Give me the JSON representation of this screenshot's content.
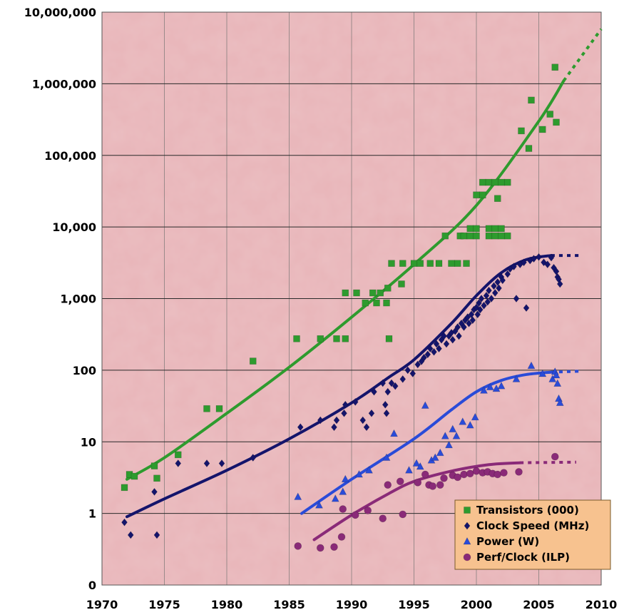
{
  "chart_data": {
    "type": "scatter",
    "xlim": [
      1970,
      2010
    ],
    "ylim": [
      0.1,
      10000000
    ],
    "yscale": "log",
    "x_ticks": [
      1970,
      1975,
      1980,
      1985,
      1990,
      1995,
      2000,
      2005,
      2010
    ],
    "y_ticks": [
      {
        "value": 0.1,
        "label": "0"
      },
      {
        "value": 1,
        "label": "1"
      },
      {
        "value": 10,
        "label": "10"
      },
      {
        "value": 100,
        "label": "100"
      },
      {
        "value": 1000,
        "label": "1,000"
      },
      {
        "value": 10000,
        "label": "10,000"
      },
      {
        "value": 100000,
        "label": "100,000"
      },
      {
        "value": 1000000,
        "label": "1,000,000"
      },
      {
        "value": 10000000,
        "label": "10,000,000"
      }
    ],
    "grid": true,
    "legend_position": "bottom-right",
    "background_color": "#e8b4b8",
    "series": [
      {
        "name": "Transistors (000)",
        "marker": "square",
        "color": "#2e9b2e",
        "points": [
          [
            1971.8,
            2.3
          ],
          [
            1972.2,
            3.5
          ],
          [
            1972.6,
            3.3
          ],
          [
            1974.2,
            4.6
          ],
          [
            1974.4,
            3.1
          ],
          [
            1976.1,
            6.6
          ],
          [
            1978.4,
            29
          ],
          [
            1979.4,
            29
          ],
          [
            1982.1,
            134
          ],
          [
            1985.6,
            275
          ],
          [
            1987.5,
            275
          ],
          [
            1988.8,
            275
          ],
          [
            1989.5,
            275
          ],
          [
            1989.5,
            1200
          ],
          [
            1990.4,
            1200
          ],
          [
            1991.1,
            870
          ],
          [
            1991.7,
            1200
          ],
          [
            1992.0,
            870
          ],
          [
            1992.3,
            1200
          ],
          [
            1992.8,
            870
          ],
          [
            1992.9,
            1400
          ],
          [
            1993.0,
            275
          ],
          [
            1993.2,
            3100
          ],
          [
            1994.0,
            1600
          ],
          [
            1994.1,
            3100
          ],
          [
            1995.0,
            3100
          ],
          [
            1995.5,
            3100
          ],
          [
            1996.3,
            3100
          ],
          [
            1997.0,
            3100
          ],
          [
            1997.5,
            7500
          ],
          [
            1998.0,
            3100
          ],
          [
            1998.5,
            3100
          ],
          [
            1998.7,
            7500
          ],
          [
            1999.0,
            7500
          ],
          [
            1999.2,
            3100
          ],
          [
            1999.5,
            7500
          ],
          [
            1999.5,
            9500
          ],
          [
            2000.0,
            7500
          ],
          [
            2000.0,
            9500
          ],
          [
            2000.0,
            28000
          ],
          [
            2000.5,
            28000
          ],
          [
            2000.5,
            42000
          ],
          [
            2001.0,
            7500
          ],
          [
            2001.0,
            9500
          ],
          [
            2001.0,
            42000
          ],
          [
            2001.5,
            7500
          ],
          [
            2001.5,
            9500
          ],
          [
            2001.5,
            42000
          ],
          [
            2001.7,
            25000
          ],
          [
            2002.0,
            7500
          ],
          [
            2002.0,
            9500
          ],
          [
            2002.0,
            42000
          ],
          [
            2002.5,
            7500
          ],
          [
            2002.5,
            42000
          ],
          [
            2003.6,
            220000
          ],
          [
            2004.2,
            125000
          ],
          [
            2004.4,
            590000
          ],
          [
            2005.3,
            230000
          ],
          [
            2005.9,
            376000
          ],
          [
            2006.3,
            1700000
          ],
          [
            2006.4,
            290000
          ]
        ],
        "trend": [
          [
            1972,
            3
          ],
          [
            1975,
            6
          ],
          [
            1980,
            25
          ],
          [
            1985,
            110
          ],
          [
            1990,
            550
          ],
          [
            1995,
            3000
          ],
          [
            2000,
            20000
          ],
          [
            2005,
            300000
          ],
          [
            2007,
            1100000
          ]
        ],
        "trend_projection": [
          [
            2007,
            1100000
          ],
          [
            2010,
            5800000
          ]
        ]
      },
      {
        "name": "Clock Speed (MHz)",
        "marker": "diamond",
        "color": "#14146b",
        "points": [
          [
            1971.8,
            0.75
          ],
          [
            1972.3,
            0.5
          ],
          [
            1974.2,
            2
          ],
          [
            1974.4,
            0.5
          ],
          [
            1976.1,
            5
          ],
          [
            1978.4,
            5
          ],
          [
            1979.6,
            5
          ],
          [
            1982.1,
            6
          ],
          [
            1985.9,
            16
          ],
          [
            1987.5,
            20
          ],
          [
            1988.6,
            16
          ],
          [
            1988.8,
            20
          ],
          [
            1989.4,
            25
          ],
          [
            1989.5,
            33
          ],
          [
            1990.3,
            36
          ],
          [
            1990.9,
            20
          ],
          [
            1991.2,
            16
          ],
          [
            1991.6,
            25
          ],
          [
            1991.8,
            50
          ],
          [
            1992.5,
            66
          ],
          [
            1992.7,
            33
          ],
          [
            1992.8,
            25
          ],
          [
            1992.9,
            50
          ],
          [
            1993.2,
            66
          ],
          [
            1993.5,
            60
          ],
          [
            1994.1,
            75
          ],
          [
            1994.5,
            100
          ],
          [
            1994.9,
            90
          ],
          [
            1995.3,
            120
          ],
          [
            1995.6,
            133
          ],
          [
            1995.8,
            150
          ],
          [
            1996.1,
            166
          ],
          [
            1996.3,
            200
          ],
          [
            1996.6,
            180
          ],
          [
            1996.8,
            233
          ],
          [
            1997.0,
            200
          ],
          [
            1997.2,
            266
          ],
          [
            1997.4,
            300
          ],
          [
            1997.6,
            233
          ],
          [
            1997.8,
            300
          ],
          [
            1998.0,
            333
          ],
          [
            1998.1,
            266
          ],
          [
            1998.3,
            350
          ],
          [
            1998.5,
            400
          ],
          [
            1998.6,
            300
          ],
          [
            1998.8,
            450
          ],
          [
            1999.0,
            400
          ],
          [
            1999.1,
            500
          ],
          [
            1999.3,
            550
          ],
          [
            1999.4,
            450
          ],
          [
            1999.6,
            600
          ],
          [
            1999.7,
            500
          ],
          [
            1999.8,
            700
          ],
          [
            2000.0,
            750
          ],
          [
            2000.1,
            600
          ],
          [
            2000.2,
            866
          ],
          [
            2000.3,
            700
          ],
          [
            2000.4,
            1000
          ],
          [
            2000.6,
            800
          ],
          [
            2000.8,
            1100
          ],
          [
            2000.9,
            900
          ],
          [
            2001.0,
            1300
          ],
          [
            2001.2,
            1000
          ],
          [
            2001.4,
            1500
          ],
          [
            2001.5,
            1200
          ],
          [
            2001.7,
            1700
          ],
          [
            2001.8,
            1400
          ],
          [
            2002.0,
            2000
          ],
          [
            2002.1,
            1800
          ],
          [
            2002.5,
            2200
          ],
          [
            2002.7,
            2600
          ],
          [
            2003.0,
            2800
          ],
          [
            2003.2,
            1000
          ],
          [
            2003.5,
            3000
          ],
          [
            2003.8,
            3200
          ],
          [
            2004.0,
            740
          ],
          [
            2004.3,
            3400
          ],
          [
            2004.6,
            3600
          ],
          [
            2005.0,
            3800
          ],
          [
            2005.4,
            3200
          ],
          [
            2005.7,
            3000
          ],
          [
            2006.0,
            3733
          ],
          [
            2006.2,
            2700
          ],
          [
            2006.4,
            2400
          ],
          [
            2006.5,
            2000
          ],
          [
            2006.6,
            1860
          ],
          [
            2006.7,
            1600
          ]
        ],
        "trend": [
          [
            1972,
            0.9
          ],
          [
            1975,
            1.6
          ],
          [
            1980,
            4
          ],
          [
            1985,
            11
          ],
          [
            1990,
            35
          ],
          [
            1993,
            80
          ],
          [
            1995,
            140
          ],
          [
            1998,
            450
          ],
          [
            2000,
            1100
          ],
          [
            2002,
            2300
          ],
          [
            2004,
            3500
          ],
          [
            2006,
            4000
          ]
        ],
        "trend_projection": [
          [
            2006,
            4000
          ],
          [
            2008.5,
            4000
          ]
        ]
      },
      {
        "name": "Power (W)",
        "marker": "triangle",
        "color": "#2a4bd8",
        "points": [
          [
            1985.7,
            1.7
          ],
          [
            1987.4,
            1.3
          ],
          [
            1988.7,
            1.6
          ],
          [
            1989.3,
            2
          ],
          [
            1989.5,
            3
          ],
          [
            1990.6,
            3.5
          ],
          [
            1991.4,
            4
          ],
          [
            1992.8,
            6
          ],
          [
            1993.4,
            13
          ],
          [
            1994.6,
            4
          ],
          [
            1995.2,
            5
          ],
          [
            1995.5,
            4.5
          ],
          [
            1995.9,
            32
          ],
          [
            1996.4,
            5.5
          ],
          [
            1996.7,
            6
          ],
          [
            1997.1,
            7
          ],
          [
            1997.5,
            12
          ],
          [
            1997.8,
            9
          ],
          [
            1998.1,
            15
          ],
          [
            1998.4,
            12
          ],
          [
            1998.9,
            19
          ],
          [
            1999.5,
            17
          ],
          [
            1999.9,
            22
          ],
          [
            2000.6,
            52
          ],
          [
            2001.1,
            58
          ],
          [
            2001.6,
            55
          ],
          [
            2002.0,
            60
          ],
          [
            2003.2,
            75
          ],
          [
            2004.4,
            115
          ],
          [
            2005.3,
            89
          ],
          [
            2006.1,
            75
          ],
          [
            2006.3,
            95
          ],
          [
            2006.4,
            85
          ],
          [
            2006.5,
            65
          ],
          [
            2006.6,
            40
          ],
          [
            2006.7,
            35
          ]
        ],
        "trend": [
          [
            1986,
            1
          ],
          [
            1990,
            3
          ],
          [
            1995,
            11
          ],
          [
            1998,
            28
          ],
          [
            2000,
            50
          ],
          [
            2002,
            72
          ],
          [
            2004,
            87
          ],
          [
            2006,
            94
          ]
        ],
        "trend_projection": [
          [
            2006,
            94
          ],
          [
            2008.5,
            97
          ]
        ]
      },
      {
        "name": "Perf/Clock (ILP)",
        "marker": "circle",
        "color": "#8a2a78",
        "points": [
          [
            1985.7,
            0.35
          ],
          [
            1987.5,
            0.33
          ],
          [
            1988.6,
            0.34
          ],
          [
            1989.2,
            0.47
          ],
          [
            1989.3,
            1.15
          ],
          [
            1990.3,
            0.95
          ],
          [
            1991.3,
            1.1
          ],
          [
            1992.5,
            0.85
          ],
          [
            1992.9,
            2.5
          ],
          [
            1993.9,
            2.8
          ],
          [
            1994.1,
            0.97
          ],
          [
            1995.3,
            2.7
          ],
          [
            1995.9,
            3.5
          ],
          [
            1996.2,
            2.5
          ],
          [
            1996.5,
            2.4
          ],
          [
            1997.1,
            2.5
          ],
          [
            1997.4,
            3.1
          ],
          [
            1998.1,
            3.4
          ],
          [
            1998.5,
            3.2
          ],
          [
            1999.0,
            3.5
          ],
          [
            1999.5,
            3.6
          ],
          [
            2000.0,
            3.9
          ],
          [
            2000.5,
            3.7
          ],
          [
            2000.9,
            3.8
          ],
          [
            2001.3,
            3.6
          ],
          [
            2001.7,
            3.5
          ],
          [
            2002.2,
            3.7
          ],
          [
            2003.4,
            3.8
          ],
          [
            2006.3,
            6.2
          ]
        ],
        "trend": [
          [
            1987,
            0.43
          ],
          [
            1990,
            0.95
          ],
          [
            1993,
            1.9
          ],
          [
            1995,
            2.8
          ],
          [
            1998,
            3.9
          ],
          [
            2001,
            4.8
          ],
          [
            2003.5,
            5.1
          ]
        ],
        "trend_projection": [
          [
            2003.5,
            5.1
          ],
          [
            2008,
            5.2
          ]
        ]
      }
    ]
  }
}
